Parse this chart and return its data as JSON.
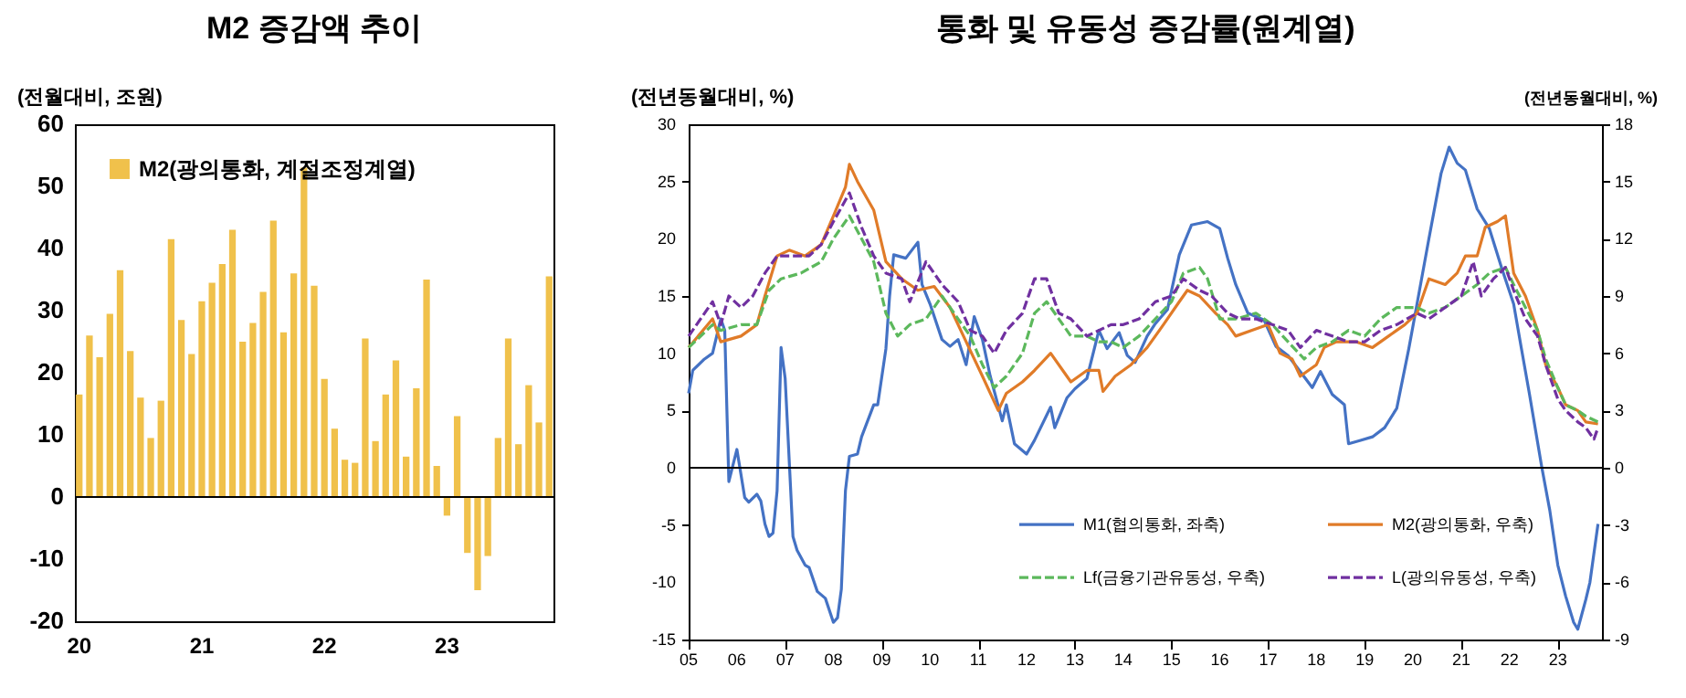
{
  "chart_data": [
    {
      "type": "bar",
      "title": "M2 증감액 추이",
      "ylabel": "(전월대비, 조원)",
      "legend": "top left",
      "ylim": [
        -20,
        60
      ],
      "yticks": [
        -20,
        -10,
        0,
        10,
        20,
        30,
        40,
        50,
        60
      ],
      "categories": [
        "20",
        null,
        null,
        null,
        null,
        null,
        null,
        null,
        null,
        null,
        null,
        null,
        "21",
        null,
        null,
        null,
        null,
        null,
        null,
        null,
        null,
        null,
        null,
        null,
        "22",
        null,
        null,
        null,
        null,
        null,
        null,
        null,
        null,
        null,
        null,
        null,
        "23",
        null,
        null,
        null,
        null,
        null,
        null,
        null,
        null,
        null,
        null
      ],
      "ref_lines": [
        {
          "axis": "y",
          "value": 0
        }
      ],
      "series": [
        {
          "name": "M2(광의통화, 계절조정계열)",
          "color": "#f0c14b",
          "values": [
            16.5,
            26,
            22.5,
            29.5,
            36.5,
            23.5,
            16,
            9.5,
            15.5,
            41.5,
            28.5,
            23,
            31.5,
            34.5,
            37.5,
            43,
            25,
            28,
            33,
            44.5,
            26.5,
            36,
            53,
            34,
            19,
            11,
            6,
            5.5,
            25.5,
            9,
            16.5,
            22,
            6.5,
            17.5,
            35,
            5,
            -3,
            13,
            -9,
            -15,
            -9.5,
            9.5,
            25.5,
            8.5,
            18,
            12,
            35.5
          ]
        }
      ]
    },
    {
      "type": "line",
      "title": "통화 및 유동성 증감률(원계열)",
      "ylabel": "(전년동월대비, %)",
      "y2label": "(전년동월대비, %)",
      "legend": "bottom",
      "xlim": [
        "2005-01",
        "2023-12"
      ],
      "xticks": [
        {
          "value": "2005-01",
          "label": "05"
        },
        {
          "value": "2006-01",
          "label": "06"
        },
        {
          "value": "2007-01",
          "label": "07"
        },
        {
          "value": "2008-01",
          "label": "08"
        },
        {
          "value": "2009-01",
          "label": "09"
        },
        {
          "value": "2010-01",
          "label": "10"
        },
        {
          "value": "2011-01",
          "label": "11"
        },
        {
          "value": "2012-01",
          "label": "12"
        },
        {
          "value": "2013-01",
          "label": "13"
        },
        {
          "value": "2014-01",
          "label": "14"
        },
        {
          "value": "2015-01",
          "label": "15"
        },
        {
          "value": "2016-01",
          "label": "16"
        },
        {
          "value": "2017-01",
          "label": "17"
        },
        {
          "value": "2018-01",
          "label": "18"
        },
        {
          "value": "2019-01",
          "label": "19"
        },
        {
          "value": "2020-01",
          "label": "20"
        },
        {
          "value": "2021-01",
          "label": "21"
        },
        {
          "value": "2022-01",
          "label": "22"
        },
        {
          "value": "2023-01",
          "label": "23"
        }
      ],
      "ylim": [
        -15,
        30
      ],
      "yticks": [
        -15,
        -10,
        -5,
        0,
        5,
        10,
        15,
        20,
        25,
        30
      ],
      "y2lim": [
        -9,
        18
      ],
      "y2ticks": [
        -9,
        -6,
        -3,
        0,
        3,
        6,
        9,
        12,
        15,
        18
      ],
      "ref_lines": [
        {
          "axis": "y",
          "value": 0
        }
      ],
      "series": [
        {
          "name": "M1(협의통화, 좌축)",
          "color": "#4472c4",
          "line_style": "solid",
          "x": [
            "2005-01",
            "2005-02",
            "2005-05",
            "2005-07",
            "2005-09",
            "2005-10",
            "2005-11",
            "2006-01",
            "2006-03",
            "2006-04",
            "2006-06",
            "2006-07",
            "2006-08",
            "2006-09",
            "2006-10",
            "2006-11",
            "2006-12",
            "2007-01",
            "2007-03",
            "2007-04",
            "2007-06",
            "2007-07",
            "2007-09",
            "2007-11",
            "2008-01",
            "2008-02",
            "2008-03",
            "2008-04",
            "2008-05",
            "2008-07",
            "2008-08",
            "2008-11",
            "2008-12",
            "2009-02",
            "2009-03",
            "2009-04",
            "2009-07",
            "2009-10",
            "2009-11",
            "2010-01",
            "2010-04",
            "2010-06",
            "2010-08",
            "2010-10",
            "2010-12",
            "2011-02",
            "2011-04",
            "2011-07",
            "2011-08",
            "2011-10",
            "2012-01",
            "2012-03",
            "2012-07",
            "2012-08",
            "2012-11",
            "2013-01",
            "2013-04",
            "2013-07",
            "2013-09",
            "2013-12",
            "2014-02",
            "2014-04",
            "2014-07",
            "2014-09",
            "2014-12",
            "2015-03",
            "2015-06",
            "2015-10",
            "2016-01",
            "2016-03",
            "2016-05",
            "2016-08",
            "2016-12",
            "2017-03",
            "2017-06",
            "2017-09",
            "2017-12",
            "2018-02",
            "2018-05",
            "2018-08",
            "2018-09",
            "2018-12",
            "2019-03",
            "2019-06",
            "2019-09",
            "2019-12",
            "2020-02",
            "2020-05",
            "2020-08",
            "2020-10",
            "2020-12",
            "2021-02",
            "2021-05",
            "2021-08",
            "2021-11",
            "2022-02",
            "2022-04",
            "2022-06",
            "2022-09",
            "2022-11",
            "2023-01",
            "2023-03",
            "2023-05",
            "2023-06",
            "2023-08",
            "2023-09",
            "2023-11"
          ],
          "values": [
            6.5,
            8.5,
            9.5,
            10,
            13,
            12,
            -1.2,
            1.6,
            -2.6,
            -3,
            -2.3,
            -2.9,
            -4.9,
            -6,
            -5.7,
            -2,
            10.5,
            7.8,
            -6,
            -7.2,
            -8.5,
            -8.7,
            -10.8,
            -11.4,
            -13.5,
            -13.1,
            -10.6,
            -2,
            1,
            1.2,
            2.7,
            5.5,
            5.5,
            10.4,
            15,
            18.6,
            18.3,
            19.7,
            16,
            14.3,
            11.2,
            10.6,
            11.2,
            9,
            13.2,
            11.2,
            8,
            4.1,
            5.5,
            2.1,
            1.2,
            2.4,
            5.3,
            3.5,
            6.1,
            6.9,
            7.8,
            12,
            10.4,
            11.8,
            9.8,
            9.2,
            11.5,
            12.6,
            13.8,
            18.6,
            21.2,
            21.5,
            20.9,
            18.3,
            16,
            13.5,
            12.9,
            10.6,
            9.8,
            8.4,
            7,
            8.4,
            6.4,
            5.5,
            2.1,
            2.4,
            2.7,
            3.5,
            5.2,
            10.4,
            14.3,
            20,
            25.7,
            28,
            26.6,
            26,
            22.6,
            20.9,
            17.5,
            14.3,
            10.4,
            6.4,
            0.1,
            -3.7,
            -8.5,
            -11.2,
            -13.5,
            -14.1,
            -11.5,
            -10,
            -4.9
          ]
        },
        {
          "name": "M2(광의통화, 우축)",
          "color": "#e07b28",
          "line_style": "solid",
          "axis": "y2",
          "x": [
            "2005-01",
            "2005-07",
            "2005-09",
            "2006-02",
            "2006-06",
            "2006-08",
            "2006-11",
            "2007-02",
            "2007-06",
            "2007-10",
            "2008-01",
            "2008-04",
            "2008-05",
            "2008-07",
            "2008-11",
            "2009-02",
            "2009-06",
            "2009-10",
            "2010-02",
            "2010-06",
            "2010-10",
            "2011-02",
            "2011-06",
            "2011-08",
            "2011-12",
            "2012-03",
            "2012-07",
            "2012-10",
            "2012-12",
            "2013-04",
            "2013-07",
            "2013-08",
            "2013-11",
            "2014-03",
            "2014-07",
            "2014-11",
            "2015-03",
            "2015-05",
            "2015-08",
            "2015-12",
            "2016-03",
            "2016-05",
            "2016-09",
            "2017-01",
            "2017-04",
            "2017-07",
            "2017-09",
            "2018-01",
            "2018-03",
            "2018-06",
            "2018-11",
            "2019-03",
            "2019-07",
            "2019-11",
            "2020-02",
            "2020-05",
            "2020-09",
            "2020-12",
            "2021-02",
            "2021-05",
            "2021-07",
            "2021-10",
            "2021-12",
            "2022-02",
            "2022-05",
            "2022-08",
            "2022-10",
            "2023-01",
            "2023-03",
            "2023-06",
            "2023-08",
            "2023-11"
          ],
          "values": [
            6.3,
            7.8,
            6.6,
            6.9,
            7.5,
            9,
            11.1,
            11.4,
            11.1,
            11.7,
            13.2,
            14.7,
            15.9,
            15,
            13.5,
            10.8,
            9.9,
            9.3,
            9.5,
            8.4,
            6.6,
            4.8,
            3,
            3.9,
            4.5,
            5.1,
            6,
            5.1,
            4.5,
            5.1,
            5.1,
            4,
            4.8,
            5.4,
            6.3,
            7.5,
            8.7,
            9.3,
            9,
            8.1,
            7.5,
            6.9,
            7.2,
            7.5,
            6,
            5.7,
            4.8,
            5.4,
            6.3,
            6.6,
            6.6,
            6.3,
            6.9,
            7.5,
            8.1,
            9.9,
            9.6,
            10.2,
            11.1,
            11.1,
            12.6,
            12.9,
            13.2,
            10.2,
            9,
            7.2,
            5.4,
            4.2,
            3.3,
            3,
            2.4,
            2.3
          ]
        },
        {
          "name": "Lf(금융기관유동성, 우축)",
          "color": "#5cb85c",
          "line_style": "dashed",
          "axis": "y2",
          "x": [
            "2005-01",
            "2005-07",
            "2005-09",
            "2006-02",
            "2006-06",
            "2006-09",
            "2006-12",
            "2007-05",
            "2007-10",
            "2008-01",
            "2008-05",
            "2008-08",
            "2008-11",
            "2009-02",
            "2009-05",
            "2009-08",
            "2009-12",
            "2010-04",
            "2010-08",
            "2010-11",
            "2011-02",
            "2011-05",
            "2011-08",
            "2011-12",
            "2012-03",
            "2012-06",
            "2012-09",
            "2012-12",
            "2013-04",
            "2013-07",
            "2013-10",
            "2014-01",
            "2014-05",
            "2014-09",
            "2015-01",
            "2015-04",
            "2015-08",
            "2015-10",
            "2016-01",
            "2016-05",
            "2016-10",
            "2017-02",
            "2017-06",
            "2017-10",
            "2018-01",
            "2018-05",
            "2018-09",
            "2019-01",
            "2019-05",
            "2019-09",
            "2020-02",
            "2020-05",
            "2020-09",
            "2021-01",
            "2021-05",
            "2021-08",
            "2021-12",
            "2022-02",
            "2022-05",
            "2022-08",
            "2022-10",
            "2023-01",
            "2023-03",
            "2023-06",
            "2023-08",
            "2023-11"
          ],
          "values": [
            6.3,
            7.5,
            7.2,
            7.5,
            7.5,
            9.3,
            9.9,
            10.2,
            10.8,
            12,
            13.2,
            12,
            10.8,
            8.1,
            6.9,
            7.5,
            7.8,
            9,
            7.8,
            6.9,
            5.4,
            4.2,
            4.8,
            6,
            8.1,
            8.7,
            7.8,
            6.9,
            6.9,
            6.6,
            6.6,
            6.3,
            6.9,
            7.8,
            8.7,
            10.2,
            10.5,
            9.9,
            7.8,
            7.8,
            8.1,
            7.5,
            6.6,
            5.7,
            6.3,
            6.6,
            7.2,
            6.9,
            7.8,
            8.4,
            8.4,
            8.1,
            8.4,
            9,
            9.6,
            10.2,
            10.5,
            9.6,
            8.4,
            7.2,
            5.7,
            4.2,
            3.3,
            3,
            2.7,
            2.4
          ]
        },
        {
          "name": "L(광의유동성, 우축)",
          "color": "#7030a0",
          "line_style": "dashed",
          "axis": "y2",
          "x": [
            "2005-01",
            "2005-07",
            "2005-09",
            "2005-11",
            "2006-02",
            "2006-05",
            "2006-08",
            "2006-11",
            "2007-03",
            "2007-07",
            "2007-10",
            "2008-01",
            "2008-05",
            "2008-08",
            "2008-11",
            "2009-02",
            "2009-06",
            "2009-08",
            "2009-12",
            "2010-04",
            "2010-08",
            "2010-11",
            "2011-02",
            "2011-05",
            "2011-08",
            "2011-12",
            "2012-03",
            "2012-06",
            "2012-09",
            "2012-12",
            "2013-04",
            "2013-07",
            "2013-10",
            "2014-01",
            "2014-05",
            "2014-09",
            "2015-01",
            "2015-04",
            "2015-08",
            "2015-11",
            "2016-03",
            "2016-06",
            "2016-10",
            "2017-02",
            "2017-06",
            "2017-09",
            "2018-01",
            "2018-05",
            "2018-09",
            "2019-01",
            "2019-05",
            "2019-09",
            "2020-02",
            "2020-05",
            "2020-09",
            "2021-01",
            "2021-04",
            "2021-06",
            "2021-09",
            "2021-12",
            "2022-02",
            "2022-05",
            "2022-08",
            "2022-10",
            "2023-01",
            "2023-03",
            "2023-06",
            "2023-08",
            "2023-10",
            "2023-11"
          ],
          "values": [
            6.9,
            8.7,
            7.5,
            9,
            8.4,
            9,
            10.2,
            11.1,
            11.1,
            11.1,
            11.7,
            12.9,
            14.4,
            12.6,
            11.1,
            10.2,
            9.9,
            8.7,
            10.8,
            9.6,
            8.7,
            7.2,
            6.9,
            6,
            7.2,
            8.1,
            9.9,
            9.9,
            8.1,
            7.8,
            6.9,
            7.2,
            7.5,
            7.5,
            7.8,
            8.7,
            9,
            9.9,
            9.3,
            9,
            8.1,
            7.8,
            7.8,
            7.5,
            7.2,
            6.3,
            7.2,
            6.9,
            6.6,
            6.6,
            7.2,
            7.5,
            8.1,
            7.8,
            8.4,
            9,
            10.8,
            9,
            9.9,
            10.5,
            9.3,
            7.8,
            6.9,
            5.4,
            3.6,
            3,
            2.4,
            2.1,
            1.5,
            2.1
          ]
        }
      ]
    }
  ]
}
